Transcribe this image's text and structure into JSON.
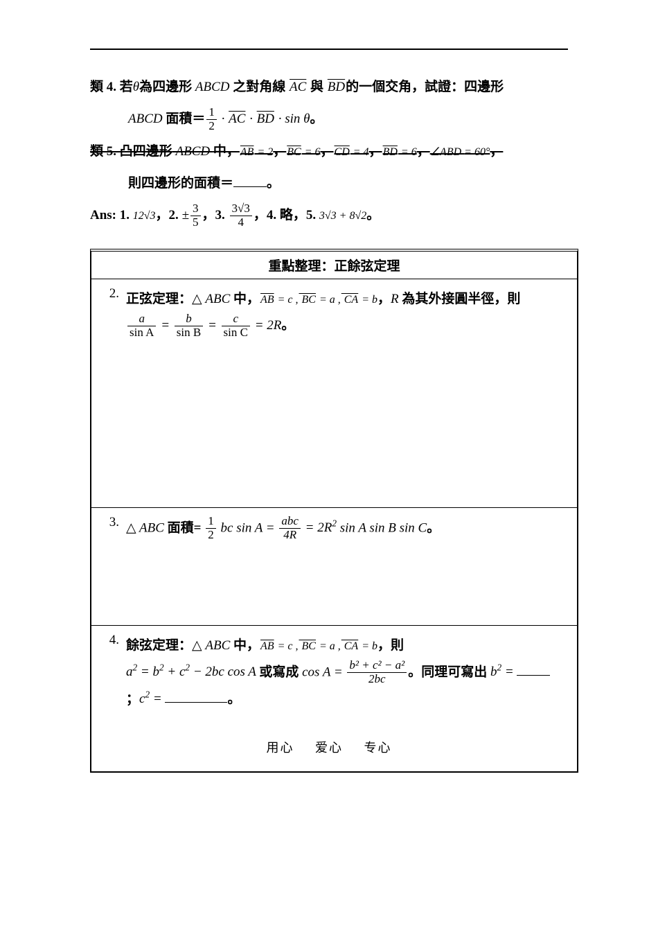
{
  "text_color": "#000000",
  "bg_color": "#ffffff",
  "top": {
    "p1_a": "類 4. 若",
    "p1_theta": "θ",
    "p1_b": "為四邊形",
    "p1_abcd": " ABCD ",
    "p1_c": "之對角線",
    "p1_ac": "AC",
    "p1_d": " 與 ",
    "p1_bd": "BD",
    "p1_e": "的一個交角，試證：四邊形",
    "p2_abcd": "ABCD ",
    "p2_a": "面積＝",
    "p2_frac_num": "1",
    "p2_frac_den": "2",
    "p2_dot1": " · ",
    "p2_ac": "AC",
    "p2_dot2": " · ",
    "p2_bd": "BD",
    "p2_b": " · sin ",
    "p2_theta": "θ",
    "p2_end": "。",
    "p3_a": "類 5. 凸四邊形",
    "p3_abcd": " ABCD ",
    "p3_b": "中，",
    "p3_ab": "AB",
    "p3_eq2": " = 2",
    "p3_c": "，",
    "p3_bc": "BC",
    "p3_eq6a": " = 6",
    "p3_d": "，",
    "p3_cd": "CD",
    "p3_eq4": " = 4",
    "p3_e": "，",
    "p3_bdv": "BD",
    "p3_eq6b": " = 6",
    "p3_f": "，",
    "p3_ang": "∠ABD ",
    "p3_eq60": "= 60°",
    "p3_g": "，",
    "p4": "則四邊形的面積＝",
    "p4_end": "。",
    "ans_label": "Ans: 1. ",
    "ans1": "12√3",
    "ans_c1": "，2. ",
    "ans2_pm": "±",
    "ans2_num": "3",
    "ans2_den": "5",
    "ans_c2": "，3. ",
    "ans3_num": "3√3",
    "ans3_den": "4",
    "ans_c3": "，4. 略，5. ",
    "ans5": "3√3 + 8√2",
    "ans_end": "。"
  },
  "table": {
    "header": "重點整理：正餘弦定理",
    "r2_num": "2.",
    "r2_a": "正弦定理：",
    "r2_tri": "△",
    "r2_abc": " ABC ",
    "r2_b": "中，",
    "r2_ab": "AB",
    "r2_eqc": " = c ,",
    "r2_bc": " BC",
    "r2_eqa": " = a ,",
    "r2_ca": " CA",
    "r2_eqb": " = b",
    "r2_c": "，",
    "r2_R": "R ",
    "r2_d": "為其外接圓半徑，則",
    "r2_fa_n": "a",
    "r2_fa_d": "sin A",
    "r2_eq1": " = ",
    "r2_fb_n": "b",
    "r2_fb_d": "sin B",
    "r2_eq2": " = ",
    "r2_fc_n": "c",
    "r2_fc_d": "sin C",
    "r2_eq3": " = 2R",
    "r2_end": "。",
    "r3_num": "3.",
    "r3_tri": "△",
    "r3_abc": " ABC ",
    "r3_a": "面積= ",
    "r3_f1_n": "1",
    "r3_f1_d": "2",
    "r3_bc": " bc ",
    "r3_sinA": "sin A = ",
    "r3_f2_n": "abc",
    "r3_f2_d": "4R",
    "r3_eq": " = 2R",
    "r3_sq": "2",
    "r3_rest": " sin A sin B sin C",
    "r3_end": "。",
    "r4_num": "4.",
    "r4_a": "餘弦定理：",
    "r4_tri": "△",
    "r4_abc": " ABC ",
    "r4_b": "中，",
    "r4_ab": "AB",
    "r4_eqc": " = c ,",
    "r4_bc": " BC",
    "r4_eqa": " = a ,",
    "r4_ca": " CA",
    "r4_eqb": " = b",
    "r4_c": "，則",
    "r4_l2a": "a",
    "r4_l2a2": "2",
    "r4_l2b": " = b",
    "r4_l2b2": "2",
    "r4_l2c": " + c",
    "r4_l2c2": "2",
    "r4_l2d": " − 2bc cos A ",
    "r4_or": "或寫成 ",
    "r4_cosA": "cos A = ",
    "r4_fn": "b² + c² − a²",
    "r4_fd": "2bc",
    "r4_dot": "。",
    "r4_same": "同理可寫出 ",
    "r4_bsq": "b",
    "r4_bsq2": "2",
    "r4_beq": " = ",
    "r4_semi": "；",
    "r4_csq": "c",
    "r4_csq2": "2",
    "r4_ceq": " = ",
    "r4_end": "。"
  },
  "footer": {
    "a": "用心",
    "b": "爱心",
    "c": "专心"
  }
}
